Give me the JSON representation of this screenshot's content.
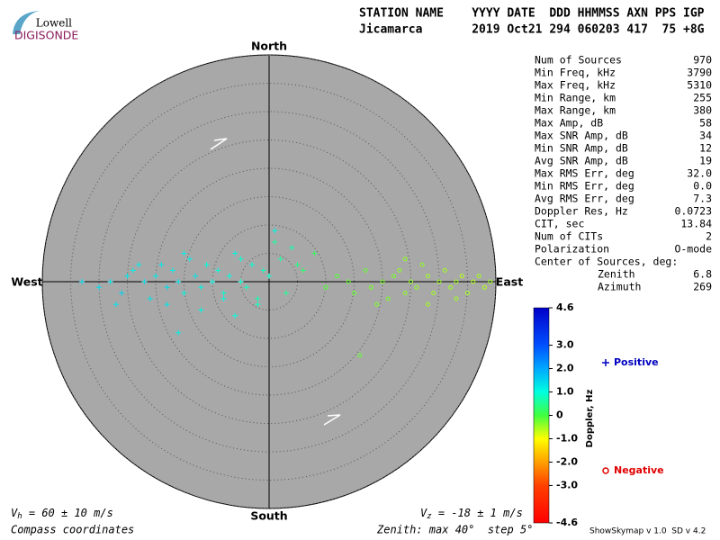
{
  "logo": {
    "top": "Lowell",
    "bottom": "DIGISONDE"
  },
  "header": {
    "columns": "STATION NAME    YYYY DATE  DDD HHMMSS AXN PPS IGP",
    "values": "Jicamarca       2019 Oct21 294 060203 417  75 +8G"
  },
  "stats": {
    "rows": [
      [
        "Num of Sources",
        "970"
      ],
      [
        "Min Freq, kHz",
        "3790"
      ],
      [
        "Max Freq, kHz",
        "5310"
      ],
      [
        "Min Range, km",
        "255"
      ],
      [
        "Max Range, km",
        "380"
      ],
      [
        "Max Amp, dB",
        "58"
      ],
      [
        "Max SNR Amp, dB",
        "34"
      ],
      [
        "Min SNR Amp, dB",
        "12"
      ],
      [
        "Avg SNR Amp, dB",
        "19"
      ],
      [
        "Max RMS Err, deg",
        "32.0"
      ],
      [
        "Min RMS Err, deg",
        "0.0"
      ],
      [
        "Avg RMS Err, deg",
        "7.3"
      ],
      [
        "Doppler Res, Hz",
        "0.0723"
      ],
      [
        "CIT, sec",
        "13.84"
      ],
      [
        "Num of CITs",
        "2"
      ],
      [
        "Polarization",
        "O-mode"
      ]
    ],
    "center_title": "Center of Sources, deg:",
    "center_rows": [
      [
        "Zenith",
        "6.8"
      ],
      [
        "Azimuth",
        "269"
      ]
    ]
  },
  "footer": {
    "vh": [
      "V",
      "h",
      " = 60 ± 10 m/s"
    ],
    "vz": [
      "V",
      "z",
      " = -18 ± 1 m/s"
    ],
    "coords": "Compass coordinates",
    "zenith": "Zenith: max 40°  step 5°",
    "version": "ShowSkymap v 1.0  SD v 4.2"
  },
  "chart_data": {
    "type": "skymap",
    "compass": {
      "north": "North",
      "south": "South",
      "west": "West",
      "east": "East"
    },
    "rlim": [
      0,
      40
    ],
    "rticks": [
      5,
      10,
      15,
      20,
      25,
      30,
      35,
      40
    ],
    "colorbar_label": "Doppler, Hz",
    "clim": [
      -4.6,
      4.6
    ],
    "cticks": [
      4.6,
      {
        "value": 3,
        "label": "3.0"
      },
      {
        "value": 2,
        "label": "2.0"
      },
      {
        "value": 1,
        "label": "1.0"
      },
      0,
      {
        "value": -1,
        "label": "-1.0"
      },
      {
        "value": -2,
        "label": "-2.0"
      },
      {
        "value": -3,
        "label": "-3.0"
      },
      -4.6
    ],
    "colormap": [
      "#0000c8",
      "#0050ff",
      "#00a8ff",
      "#00ffe0",
      "#40ff40",
      "#ffff00",
      "#ffa000",
      "#ff4000",
      "#ff0000"
    ],
    "series": [
      {
        "name": "Positive",
        "color": "#0000c0",
        "marker": "plus",
        "x": [
          -30,
          -28,
          -26,
          -25,
          -24,
          -22,
          -21,
          -20,
          -19,
          -18,
          -17,
          -16,
          -15,
          -14,
          -13,
          -12,
          -11,
          -10,
          -9,
          -8,
          -7,
          -6,
          -5,
          -4,
          -3,
          -2,
          -1,
          0,
          1,
          2,
          3,
          4,
          5,
          -27,
          -23,
          -18,
          -15,
          -12,
          -8,
          -5,
          -2,
          1,
          6,
          8,
          -33,
          -16,
          -6
        ],
        "y": [
          -1,
          0,
          -2,
          1,
          2,
          0,
          -3,
          1,
          3,
          -1,
          2,
          0,
          -2,
          4,
          1,
          -1,
          3,
          0,
          2,
          -2,
          1,
          5,
          0,
          -1,
          3,
          -3,
          2,
          1,
          9,
          4,
          -2,
          6,
          3,
          -4,
          3,
          -4,
          5,
          -5,
          -3,
          4,
          -4,
          7,
          2,
          5,
          0,
          -9,
          -6
        ],
        "doppler": [
          1.4,
          1.3,
          1.5,
          1.3,
          1.2,
          1.4,
          1.3,
          1.2,
          1.3,
          1.4,
          1.2,
          1.3,
          1.1,
          1.2,
          1.3,
          1.1,
          1.0,
          1.1,
          1.0,
          0.9,
          1.0,
          1.1,
          0.9,
          0.8,
          0.9,
          0.7,
          0.8,
          0.9,
          1.1,
          0.6,
          0.5,
          0.7,
          0.4,
          1.3,
          1.2,
          1.3,
          1.2,
          1.1,
          1.0,
          0.9,
          0.8,
          0.6,
          0.3,
          0.2,
          1.4,
          1.2,
          1.0
        ]
      },
      {
        "name": "Negative",
        "color": "#e00000",
        "marker": "circle",
        "x": [
          10,
          12,
          14,
          15,
          17,
          18,
          20,
          21,
          22,
          23,
          24,
          25,
          26,
          27,
          28,
          29,
          30,
          31,
          32,
          33,
          34,
          35,
          36,
          37,
          38,
          39,
          16,
          19,
          24,
          28,
          33
        ],
        "y": [
          -1,
          1,
          0,
          -2,
          2,
          -1,
          0,
          -3,
          1,
          2,
          -2,
          0,
          -1,
          3,
          1,
          -2,
          0,
          2,
          -1,
          0,
          1,
          -2,
          0,
          1,
          -1,
          0,
          -13,
          -4,
          4,
          -4,
          -3
        ],
        "doppler": [
          -0.1,
          -0.1,
          -0.2,
          -0.2,
          -0.2,
          -0.3,
          -0.3,
          -0.3,
          -0.3,
          -0.4,
          -0.4,
          -0.4,
          -0.4,
          -0.4,
          -0.5,
          -0.5,
          -0.5,
          -0.5,
          -0.5,
          -0.5,
          -0.6,
          -0.5,
          -0.6,
          -0.5,
          -0.6,
          -0.5,
          -0.2,
          -0.3,
          -0.4,
          -0.5,
          -0.5
        ]
      }
    ]
  }
}
